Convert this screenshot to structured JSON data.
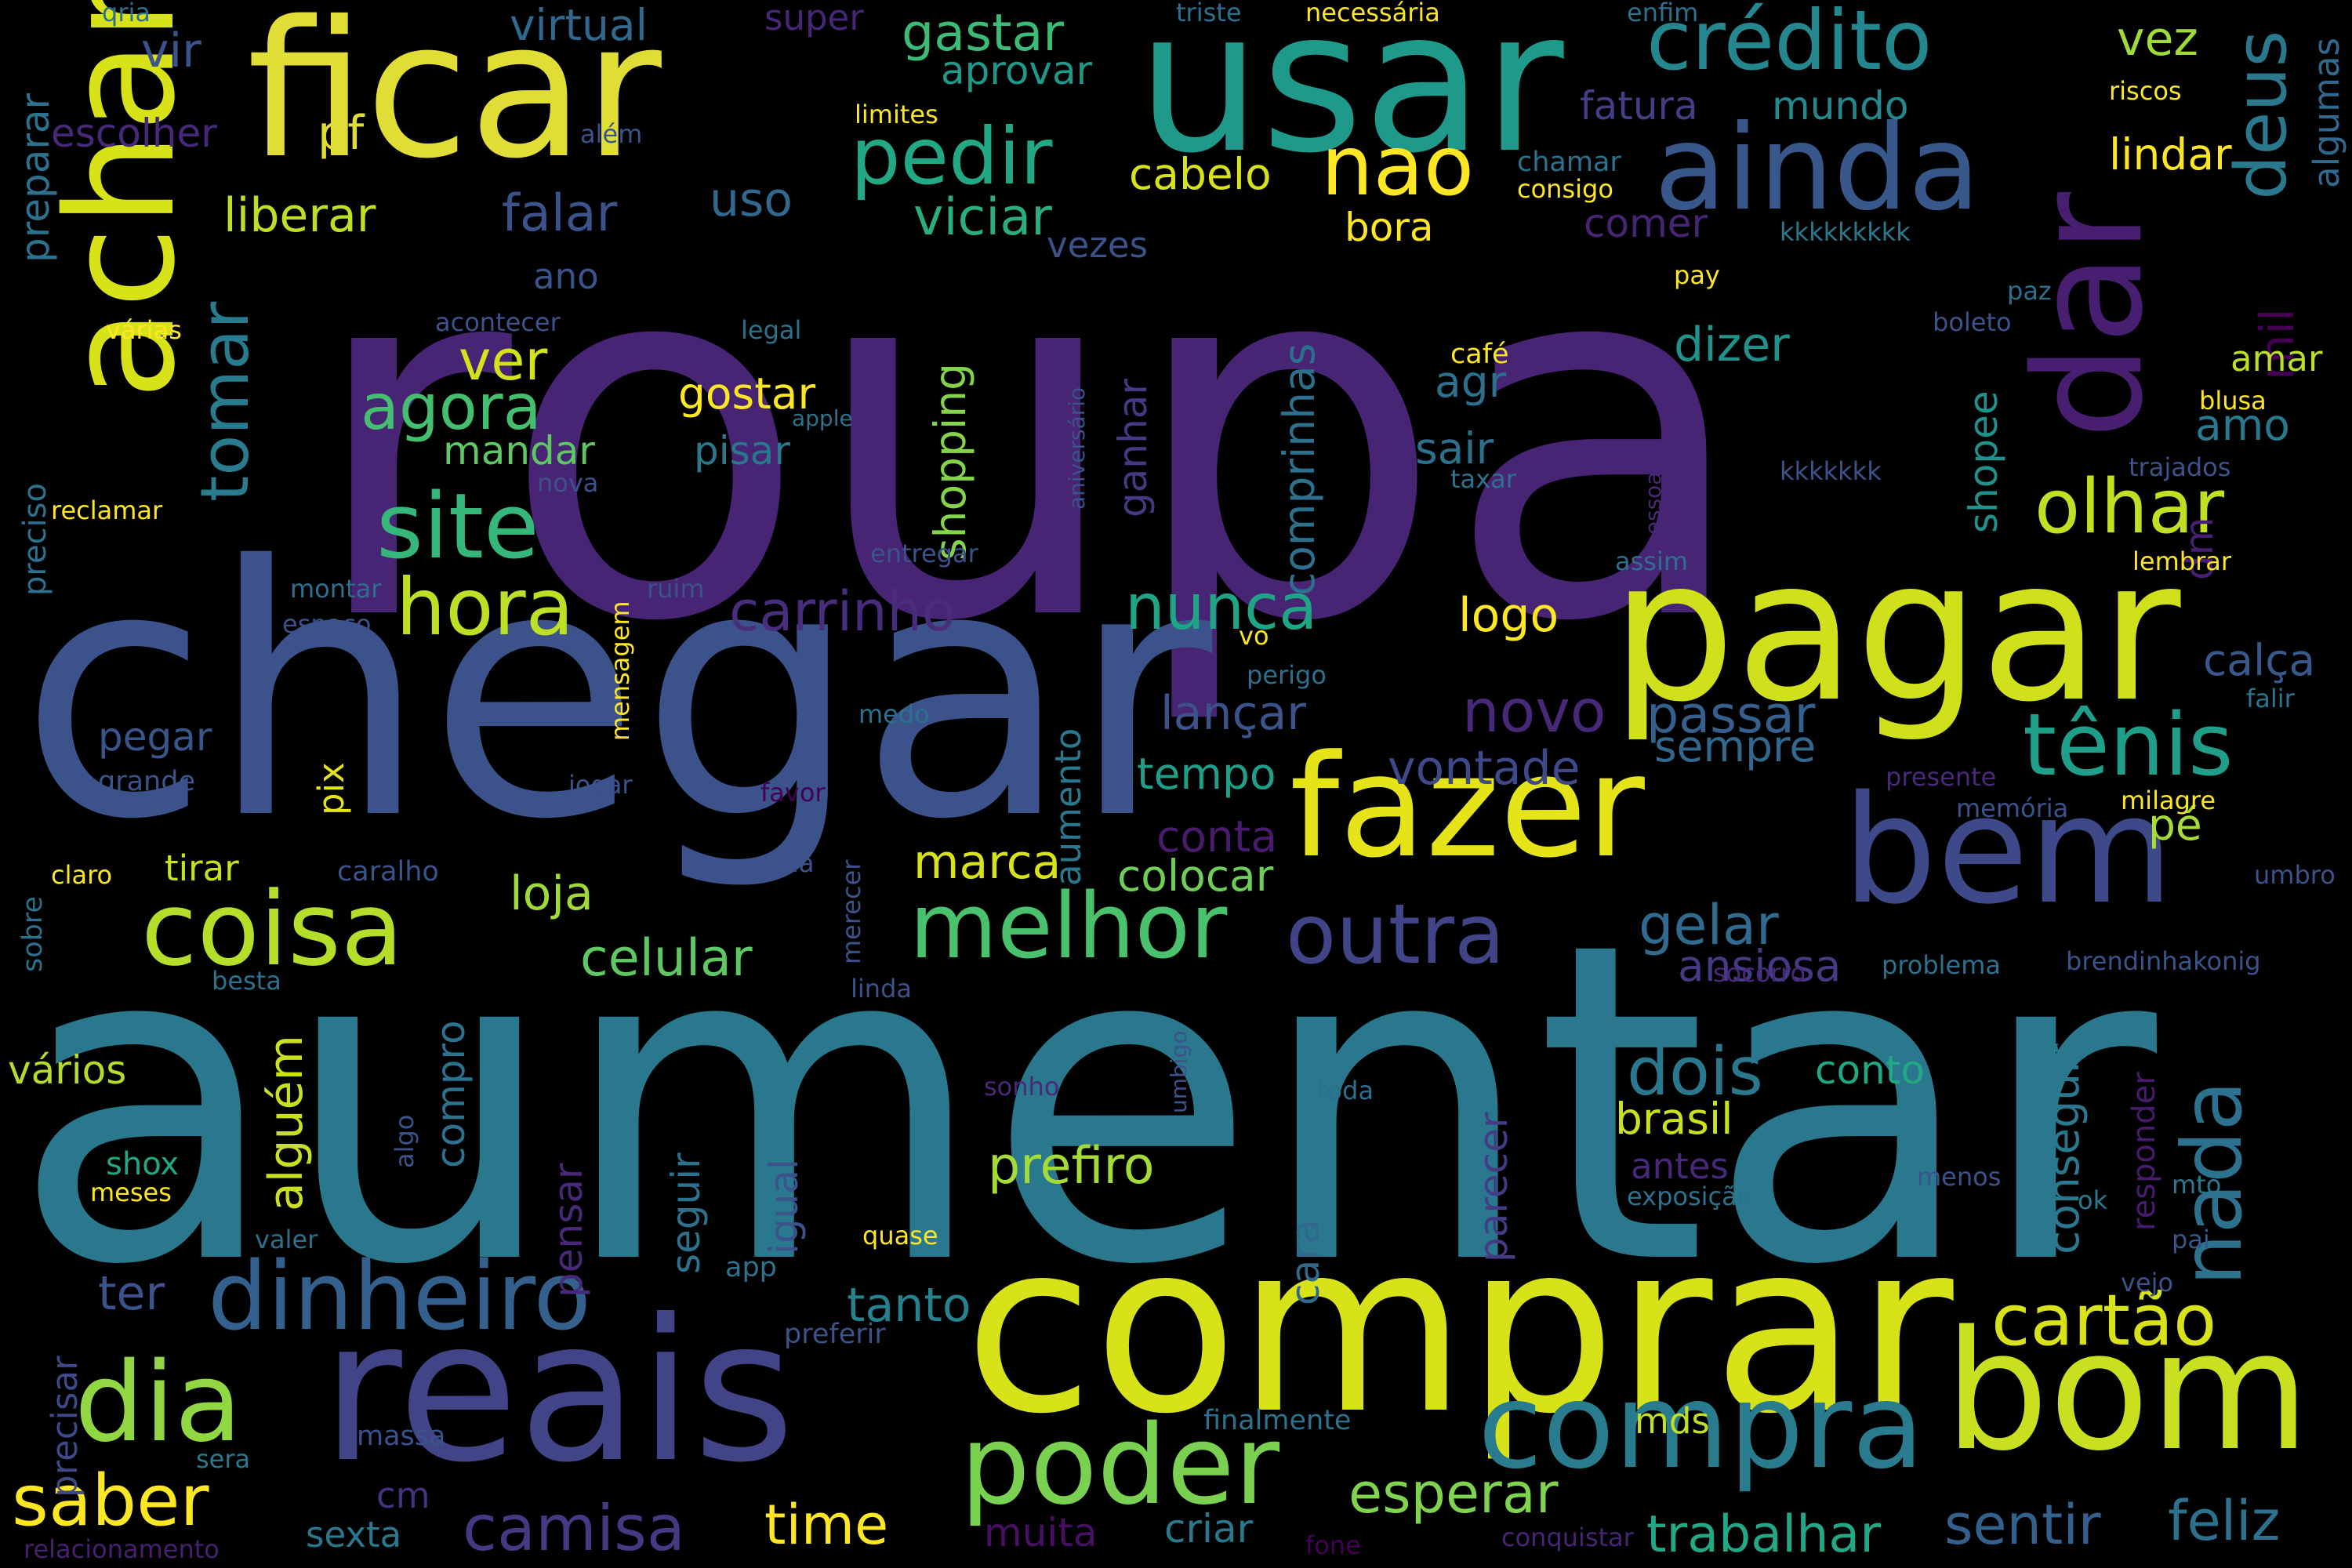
{
  "words": [
    {
      "t": "roupa",
      "c": "#482475"
    },
    {
      "t": "aumentar",
      "c": "#2a788e"
    },
    {
      "t": "chegar",
      "c": "#3b528b"
    },
    {
      "t": "comprar",
      "c": "#d8e219"
    },
    {
      "t": "ficar",
      "c": "#e1dd37"
    },
    {
      "t": "usar",
      "c": "#1f9a8a"
    },
    {
      "t": "pagar",
      "c": "#d0e11c"
    },
    {
      "t": "reais",
      "c": "#414487"
    },
    {
      "t": "bom",
      "c": "#c8e020"
    },
    {
      "t": "achar",
      "c": "#d8e219"
    },
    {
      "t": "dar",
      "c": "#481f70"
    },
    {
      "t": "fazer",
      "c": "#e5e419"
    },
    {
      "t": "bem",
      "c": "#3e4989"
    },
    {
      "t": "ainda",
      "c": "#38588c"
    },
    {
      "t": "dinheiro",
      "c": "#34608d"
    },
    {
      "t": "compra",
      "c": "#297b8e"
    },
    {
      "t": "poder",
      "c": "#7ad151"
    },
    {
      "t": "dia",
      "c": "#90d743"
    },
    {
      "t": "coisa",
      "c": "#b5de2b"
    },
    {
      "t": "crédito",
      "c": "#24868e"
    },
    {
      "t": "melhor",
      "c": "#4ac16d"
    },
    {
      "t": "outra",
      "c": "#414487"
    },
    {
      "t": "cartão",
      "c": "#d8e219"
    },
    {
      "t": "saber",
      "c": "#fde725"
    },
    {
      "t": "pedir",
      "c": "#22a884"
    },
    {
      "t": "site",
      "c": "#35b779"
    },
    {
      "t": "olhar",
      "c": "#c2df23"
    },
    {
      "t": "tênis",
      "c": "#1f9e89"
    },
    {
      "t": "hora",
      "c": "#bddf26"
    },
    {
      "t": "nada",
      "c": "#2c728e"
    },
    {
      "t": "camisa",
      "c": "#443a83"
    },
    {
      "t": "nao",
      "c": "#fde725"
    },
    {
      "t": "deus",
      "c": "#2a788e"
    },
    {
      "t": "tomar",
      "c": "#287c8e"
    },
    {
      "t": "agora",
      "c": "#44bf70"
    },
    {
      "t": "esperar",
      "c": "#7fd34e"
    },
    {
      "t": "dois",
      "c": "#2a788e"
    },
    {
      "t": "trabalhar",
      "c": "#22a884"
    },
    {
      "t": "sentir",
      "c": "#34608d"
    },
    {
      "t": "feliz",
      "c": "#2c728e"
    },
    {
      "t": "time",
      "c": "#fde725"
    },
    {
      "t": "prefiro",
      "c": "#a5db36"
    },
    {
      "t": "carrinho",
      "c": "#472d7b"
    },
    {
      "t": "nunca",
      "c": "#20a486"
    },
    {
      "t": "novo",
      "c": "#482878"
    },
    {
      "t": "passar",
      "c": "#355f8d"
    },
    {
      "t": "marca",
      "c": "#d8e219"
    },
    {
      "t": "celular",
      "c": "#5ec962"
    },
    {
      "t": "loja",
      "c": "#a0da39"
    },
    {
      "t": "gelar",
      "c": "#306a8e"
    },
    {
      "t": "conseguir",
      "c": "#2a788e"
    },
    {
      "t": "tanto",
      "c": "#25838e"
    },
    {
      "t": "ter",
      "c": "#3b528b"
    },
    {
      "t": "alguém",
      "c": "#c8e020"
    },
    {
      "t": "conta",
      "c": "#481b6d"
    },
    {
      "t": "vontade",
      "c": "#3e4989"
    },
    {
      "t": "lançar",
      "c": "#3b528b"
    },
    {
      "t": "tempo",
      "c": "#1f9e89"
    },
    {
      "t": "colocar",
      "c": "#6ece58"
    },
    {
      "t": "logo",
      "c": "#fde725"
    },
    {
      "t": "sempre",
      "c": "#31688e"
    },
    {
      "t": "ansiosa",
      "c": "#443b84"
    },
    {
      "t": "pé",
      "c": "#a8db34"
    },
    {
      "t": "calça",
      "c": "#38588c"
    },
    {
      "t": "gastar",
      "c": "#3bbb75"
    },
    {
      "t": "virtual",
      "c": "#31688e"
    },
    {
      "t": "vez",
      "c": "#a0da39"
    },
    {
      "t": "algumas",
      "c": "#31688e"
    },
    {
      "t": "mil",
      "c": "#440154"
    },
    {
      "t": "lindar",
      "c": "#fde725"
    },
    {
      "t": "mundo",
      "c": "#23898e"
    },
    {
      "t": "fatura",
      "c": "#433e85"
    },
    {
      "t": "cabelo",
      "c": "#d8e219"
    },
    {
      "t": "viciar",
      "c": "#29af7f"
    },
    {
      "t": "falar",
      "c": "#3b528b"
    },
    {
      "t": "uso",
      "c": "#31688e"
    },
    {
      "t": "liberar",
      "c": "#bddf26"
    },
    {
      "t": "pf",
      "c": "#e1dd37"
    },
    {
      "t": "vir",
      "c": "#3b528b"
    },
    {
      "t": "escolher",
      "c": "#482878"
    },
    {
      "t": "preparar",
      "c": "#2c728e"
    },
    {
      "t": "super",
      "c": "#482677"
    },
    {
      "t": "aprovar",
      "c": "#1f9a8a"
    },
    {
      "t": "ver",
      "c": "#d2e21b"
    },
    {
      "t": "mandar",
      "c": "#5ec962"
    },
    {
      "t": "pisar",
      "c": "#2a788e"
    },
    {
      "t": "gostar",
      "c": "#fde725"
    },
    {
      "t": "shopping",
      "c": "#84d44b"
    },
    {
      "t": "comprinhas",
      "c": "#2d708e"
    },
    {
      "t": "ganhar",
      "c": "#443a83"
    },
    {
      "t": "agr",
      "c": "#2d708e"
    },
    {
      "t": "sair",
      "c": "#2d708e"
    },
    {
      "t": "dizer",
      "c": "#21918c"
    },
    {
      "t": "amo",
      "c": "#2a788e"
    },
    {
      "t": "amar",
      "c": "#bddf26"
    },
    {
      "t": "shopee",
      "c": "#21918c"
    },
    {
      "t": "dm",
      "c": "#481f70"
    },
    {
      "t": "comer",
      "c": "#482475"
    },
    {
      "t": "bora",
      "c": "#fde725"
    },
    {
      "t": "vezes",
      "c": "#3b528b"
    },
    {
      "t": "ano",
      "c": "#3b528b"
    },
    {
      "t": "pix",
      "c": "#e5e419"
    },
    {
      "t": "aumento",
      "c": "#2a788e"
    },
    {
      "t": "pegar",
      "c": "#39568c"
    },
    {
      "t": "vários",
      "c": "#b5de2b"
    },
    {
      "t": "compro",
      "c": "#2c728e"
    },
    {
      "t": "seguir",
      "c": "#2c728e"
    },
    {
      "t": "igual",
      "c": "#3b528b"
    },
    {
      "t": "cara",
      "c": "#31688e"
    },
    {
      "t": "parecer",
      "c": "#443b84"
    },
    {
      "t": "pensar",
      "c": "#482878"
    },
    {
      "t": "brasil",
      "c": "#cae11f"
    },
    {
      "t": "antes",
      "c": "#482878"
    },
    {
      "t": "conto",
      "c": "#22a884"
    },
    {
      "t": "responder",
      "c": "#481b6d"
    },
    {
      "t": "tirar",
      "c": "#c8e020"
    },
    {
      "t": "muita",
      "c": "#471063"
    },
    {
      "t": "criar",
      "c": "#2a788e"
    },
    {
      "t": "sexta",
      "c": "#2a788e"
    },
    {
      "t": "cm",
      "c": "#46327e"
    },
    {
      "t": "mds",
      "c": "#c2df23"
    },
    {
      "t": "precisar",
      "c": "#3e4989"
    },
    {
      "t": "relacionamento",
      "c": "#481f70"
    },
    {
      "t": "conquistar",
      "c": "#482475"
    },
    {
      "t": "fone",
      "c": "#440154"
    },
    {
      "t": "finalmente",
      "c": "#2c728e"
    },
    {
      "t": "massa",
      "c": "#3b528b"
    },
    {
      "t": "sera",
      "c": "#2a788e"
    },
    {
      "t": "preferir",
      "c": "#3b528b"
    },
    {
      "t": "app",
      "c": "#2c728e"
    },
    {
      "t": "quase",
      "c": "#fde725"
    },
    {
      "t": "valer",
      "c": "#2d708e"
    },
    {
      "t": "meses",
      "c": "#fde725"
    },
    {
      "t": "shox",
      "c": "#22a884"
    },
    {
      "t": "algo",
      "c": "#3b528b"
    },
    {
      "t": "umbigo",
      "c": "#3b528b"
    },
    {
      "t": "sonho",
      "c": "#482878"
    },
    {
      "t": "toda",
      "c": "#2d708e"
    },
    {
      "t": "exposição",
      "c": "#2c728e"
    },
    {
      "t": "menos",
      "c": "#3b528b"
    },
    {
      "t": "ok",
      "c": "#2a788e"
    },
    {
      "t": "mto",
      "c": "#2a788e"
    },
    {
      "t": "pai",
      "c": "#39568c"
    },
    {
      "t": "vejo",
      "c": "#3b528b"
    },
    {
      "t": "linda",
      "c": "#3b528b"
    },
    {
      "t": "merecer",
      "c": "#3b528b"
    },
    {
      "t": "lá",
      "c": "#3b528b"
    },
    {
      "t": "favor",
      "c": "#440154"
    },
    {
      "t": "medo",
      "c": "#2d708e"
    },
    {
      "t": "jogar",
      "c": "#3b528b"
    },
    {
      "t": "claro",
      "c": "#fde725"
    },
    {
      "t": "caralho",
      "c": "#3b528b"
    },
    {
      "t": "besta",
      "c": "#2c728e"
    },
    {
      "t": "sobre",
      "c": "#2d708e"
    },
    {
      "t": "grande",
      "c": "#3b528b"
    },
    {
      "t": "mensagem",
      "c": "#fde725"
    },
    {
      "t": "espaço",
      "c": "#3b528b"
    },
    {
      "t": "montar",
      "c": "#2d708e"
    },
    {
      "t": "ruim",
      "c": "#3b528b"
    },
    {
      "t": "vo",
      "c": "#fde725"
    },
    {
      "t": "perigo",
      "c": "#2d708e"
    },
    {
      "t": "entregar",
      "c": "#3b528b"
    },
    {
      "t": "reclamar",
      "c": "#fde725"
    },
    {
      "t": "preciso",
      "c": "#2c728e"
    },
    {
      "t": "nova",
      "c": "#3b528b"
    },
    {
      "t": "apple",
      "c": "#2c728e"
    },
    {
      "t": "aniversário",
      "c": "#3b528b"
    },
    {
      "t": "pessoal",
      "c": "#482878"
    },
    {
      "t": "taxar",
      "c": "#2c728e"
    },
    {
      "t": "kkkkkkk",
      "c": "#3b528b"
    },
    {
      "t": "trajados",
      "c": "#3b528b"
    },
    {
      "t": "blusa",
      "c": "#fde725"
    },
    {
      "t": "lembrar",
      "c": "#fde725"
    },
    {
      "t": "assim",
      "c": "#2d708e"
    },
    {
      "t": "falir",
      "c": "#2c728e"
    },
    {
      "t": "presente",
      "c": "#482878"
    },
    {
      "t": "memória",
      "c": "#3b528b"
    },
    {
      "t": "milagre",
      "c": "#fde725"
    },
    {
      "t": "umbro",
      "c": "#3b528b"
    },
    {
      "t": "problema",
      "c": "#2c728e"
    },
    {
      "t": "brendinhakonig",
      "c": "#3b528b"
    },
    {
      "t": "socorro",
      "c": "#482878"
    },
    {
      "t": "legal",
      "c": "#2d708e"
    },
    {
      "t": "acontecer",
      "c": "#3b528b"
    },
    {
      "t": "várias",
      "c": "#fde725"
    },
    {
      "t": "café",
      "c": "#fde725"
    },
    {
      "t": "pay",
      "c": "#fde725"
    },
    {
      "t": "boleto",
      "c": "#3b528b"
    },
    {
      "t": "paz",
      "c": "#2d708e"
    },
    {
      "t": "kkkkkkkkk",
      "c": "#2a788e"
    },
    {
      "t": "consigo",
      "c": "#fde725"
    },
    {
      "t": "chamar",
      "c": "#2c728e"
    },
    {
      "t": "riscos",
      "c": "#fde725"
    },
    {
      "t": "limites",
      "c": "#fde725"
    },
    {
      "t": "além",
      "c": "#3b528b"
    },
    {
      "t": "qria",
      "c": "#2d708e"
    },
    {
      "t": "triste",
      "c": "#2c728e"
    },
    {
      "t": "necessária",
      "c": "#fde725"
    },
    {
      "t": "enfim",
      "c": "#2c728e"
    }
  ]
}
